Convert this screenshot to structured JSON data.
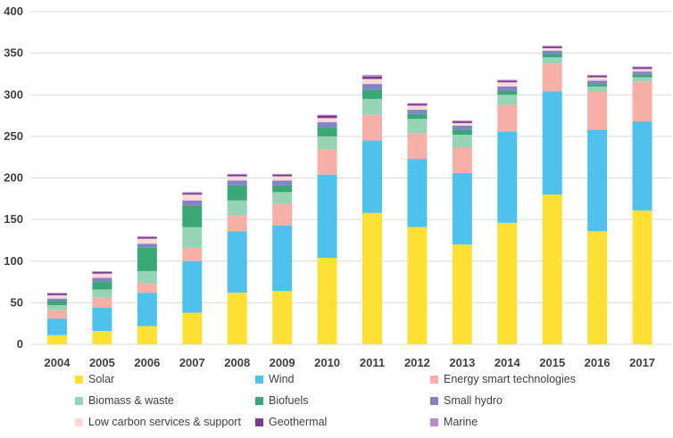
{
  "chart_data": {
    "type": "bar",
    "stacked": true,
    "categories": [
      "2004",
      "2005",
      "2006",
      "2007",
      "2008",
      "2009",
      "2010",
      "2011",
      "2012",
      "2013",
      "2014",
      "2015",
      "2016",
      "2017"
    ],
    "ylim": [
      0,
      400
    ],
    "yticks": [
      0,
      50,
      100,
      150,
      200,
      250,
      300,
      350,
      400
    ],
    "grid": true,
    "legend_position": "bottom",
    "series": [
      {
        "name": "Solar",
        "color": "#ffe135",
        "values": [
          11,
          16,
          22,
          38,
          62,
          64,
          104,
          158,
          141,
          120,
          146,
          180,
          136,
          161
        ]
      },
      {
        "name": "Wind",
        "color": "#4ec2ec",
        "values": [
          20,
          28,
          40,
          62,
          74,
          79,
          100,
          87,
          82,
          86,
          110,
          124,
          122,
          107
        ]
      },
      {
        "name": "Energy smart technologies",
        "color": "#f7b0a8",
        "values": [
          10,
          12,
          12,
          17,
          19,
          26,
          30,
          31,
          31,
          30,
          32,
          33,
          46,
          48
        ]
      },
      {
        "name": "Biomass & waste",
        "color": "#96d4b5",
        "values": [
          6,
          10,
          14,
          24,
          18,
          14,
          16,
          19,
          17,
          16,
          12,
          8,
          6,
          5
        ]
      },
      {
        "name": "Biofuels",
        "color": "#3aa876",
        "values": [
          5,
          9,
          28,
          26,
          18,
          8,
          11,
          11,
          6,
          6,
          5,
          4,
          3,
          3
        ]
      },
      {
        "name": "Small hydro",
        "color": "#7f86c4",
        "values": [
          3,
          5,
          5,
          6,
          6,
          6,
          6,
          7,
          5,
          5,
          5,
          4,
          4,
          4
        ]
      },
      {
        "name": "Low carbon services & support",
        "color": "#fcd8d6",
        "values": [
          4,
          5,
          6,
          7,
          5,
          5,
          5,
          6,
          5,
          3,
          5,
          3,
          4,
          3
        ]
      },
      {
        "name": "Geothermal",
        "color": "#7a3d8c",
        "values": [
          2,
          2,
          2,
          2,
          2,
          2,
          3,
          3,
          2,
          2,
          2,
          2,
          2,
          2
        ]
      },
      {
        "name": "Marine",
        "color": "#b68fcf",
        "values": [
          1,
          1,
          1,
          1,
          1,
          1,
          1,
          2,
          1,
          1,
          1,
          1,
          1,
          1
        ]
      }
    ]
  }
}
